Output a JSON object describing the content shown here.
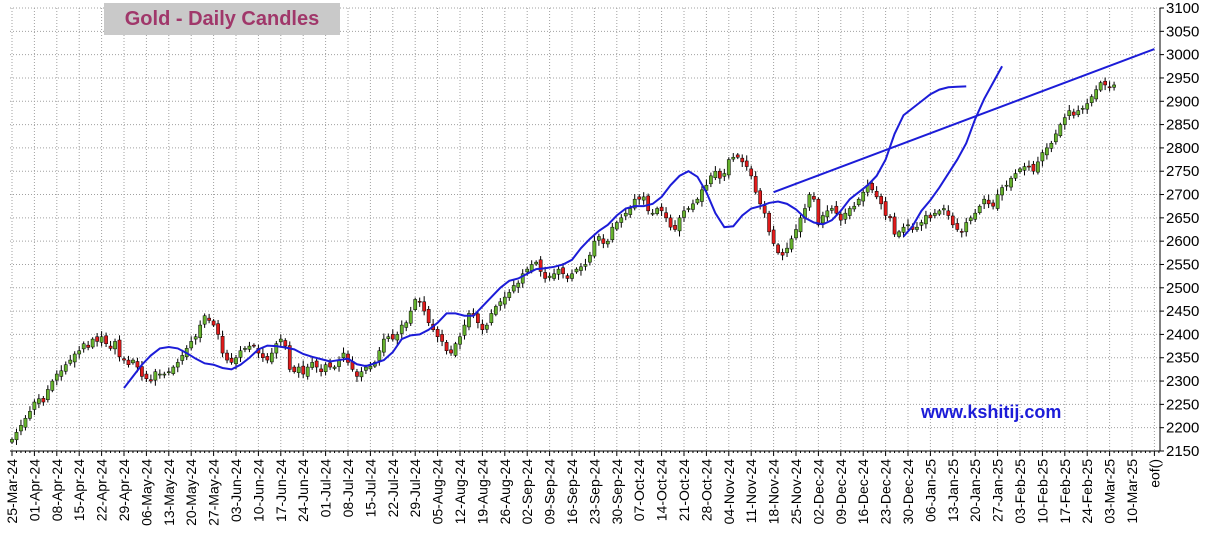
{
  "chart_data": {
    "type": "candlestick",
    "title": "Gold - Daily Candles",
    "watermark": "www.kshitij.com",
    "y_axis": {
      "position": "right",
      "ylim": [
        2150,
        3100
      ],
      "ticks": [
        2150,
        2200,
        2250,
        2300,
        2350,
        2400,
        2450,
        2500,
        2550,
        2600,
        2650,
        2700,
        2750,
        2800,
        2850,
        2900,
        2950,
        3000,
        3050,
        3100
      ]
    },
    "x_axis": {
      "ticks": [
        "25-Mar-24",
        "01-Apr-24",
        "08-Apr-24",
        "15-Apr-24",
        "22-Apr-24",
        "29-Apr-24",
        "06-May-24",
        "13-May-24",
        "20-May-24",
        "27-May-24",
        "03-Jun-24",
        "10-Jun-24",
        "17-Jun-24",
        "24-Jun-24",
        "01-Jul-24",
        "08-Jul-24",
        "15-Jul-24",
        "22-Jul-24",
        "29-Jul-24",
        "05-Aug-24",
        "12-Aug-24",
        "19-Aug-24",
        "26-Aug-24",
        "02-Sep-24",
        "09-Sep-24",
        "16-Sep-24",
        "23-Sep-24",
        "30-Sep-24",
        "07-Oct-24",
        "14-Oct-24",
        "21-Oct-24",
        "28-Oct-24",
        "04-Nov-24",
        "11-Nov-24",
        "18-Nov-24",
        "25-Nov-24",
        "02-Dec-24",
        "09-Dec-24",
        "16-Dec-24",
        "23-Dec-24",
        "30-Dec-24",
        "06-Jan-25",
        "13-Jan-25",
        "20-Jan-25",
        "27-Jan-25",
        "03-Feb-25",
        "10-Feb-25",
        "17-Feb-25",
        "24-Feb-25",
        "03-Mar-25",
        "10-Mar-25",
        "eof()"
      ]
    },
    "colors": {
      "up": "#66b22e",
      "down": "#e01b1b",
      "wick": "#000000",
      "lines": "#1c1cd8",
      "grid": "#a0a0a0"
    },
    "grid": true,
    "closes": [
      2175,
      2190,
      2205,
      2220,
      2235,
      2255,
      2262,
      2255,
      2282,
      2300,
      2315,
      2322,
      2335,
      2345,
      2358,
      2365,
      2380,
      2372,
      2390,
      2385,
      2395,
      2380,
      2370,
      2385,
      2352,
      2345,
      2335,
      2345,
      2330,
      2310,
      2305,
      2300,
      2320,
      2315,
      2315,
      2320,
      2330,
      2340,
      2355,
      2370,
      2385,
      2395,
      2420,
      2440,
      2430,
      2420,
      2400,
      2360,
      2345,
      2340,
      2350,
      2365,
      2370,
      2375,
      2375,
      2360,
      2350,
      2345,
      2360,
      2380,
      2390,
      2375,
      2325,
      2320,
      2330,
      2315,
      2330,
      2340,
      2330,
      2320,
      2335,
      2330,
      2330,
      2345,
      2360,
      2340,
      2325,
      2310,
      2320,
      2330,
      2332,
      2340,
      2365,
      2390,
      2395,
      2390,
      2400,
      2420,
      2425,
      2450,
      2475,
      2470,
      2450,
      2425,
      2410,
      2395,
      2385,
      2365,
      2360,
      2380,
      2395,
      2420,
      2445,
      2440,
      2425,
      2410,
      2420,
      2445,
      2460,
      2470,
      2480,
      2490,
      2505,
      2510,
      2530,
      2540,
      2550,
      2555,
      2535,
      2520,
      2525,
      2530,
      2540,
      2530,
      2520,
      2530,
      2540,
      2545,
      2550,
      2570,
      2600,
      2610,
      2595,
      2600,
      2630,
      2640,
      2650,
      2660,
      2670,
      2690,
      2690,
      2695,
      2665,
      2660,
      2670,
      2665,
      2650,
      2630,
      2625,
      2650,
      2665,
      2670,
      2680,
      2690,
      2710,
      2720,
      2740,
      2750,
      2735,
      2745,
      2775,
      2780,
      2780,
      2770,
      2760,
      2740,
      2705,
      2680,
      2660,
      2620,
      2595,
      2575,
      2570,
      2585,
      2605,
      2625,
      2650,
      2670,
      2700,
      2690,
      2635,
      2655,
      2665,
      2670,
      2660,
      2645,
      2660,
      2670,
      2675,
      2690,
      2705,
      2720,
      2710,
      2695,
      2680,
      2655,
      2650,
      2615,
      2620,
      2630,
      2635,
      2625,
      2630,
      2640,
      2655,
      2650,
      2660,
      2665,
      2670,
      2655,
      2635,
      2625,
      2620,
      2640,
      2650,
      2660,
      2675,
      2690,
      2680,
      2675,
      2700,
      2715,
      2720,
      2735,
      2745,
      2755,
      2760,
      2760,
      2750,
      2770,
      2790,
      2800,
      2810,
      2830,
      2850,
      2865,
      2880,
      2870,
      2880,
      2885,
      2895,
      2910,
      2925,
      2940,
      2935,
      2930,
      2935
    ],
    "ma_series": [
      {
        "start": 25,
        "values": [
          2285,
          2310,
          2335,
          2355,
          2370,
          2373,
          2370,
          2360,
          2348,
          2338,
          2335,
          2328,
          2325,
          2335,
          2350,
          2368,
          2376,
          2375,
          2372,
          2368,
          2358,
          2352,
          2347,
          2342,
          2345,
          2348,
          2336,
          2332,
          2338,
          2345,
          2362,
          2390,
          2398,
          2400,
          2410,
          2425,
          2445,
          2445,
          2440,
          2440,
          2460,
          2480,
          2500,
          2515,
          2520,
          2530,
          2540,
          2542,
          2545,
          2550,
          2560,
          2585,
          2605,
          2622,
          2635,
          2655,
          2670,
          2675,
          2675,
          2680,
          2695,
          2720,
          2740,
          2750,
          2738,
          2705,
          2660,
          2630,
          2632,
          2655,
          2670,
          2675,
          2682,
          2685,
          2680,
          2668,
          2650,
          2640,
          2636,
          2645,
          2665,
          2690,
          2705,
          2720,
          2740,
          2775,
          2830,
          2870,
          2885,
          2900,
          2915,
          2925,
          2930,
          2931,
          2932
        ]
      },
      {
        "start": 199,
        "values": [
          2610,
          2632,
          2665,
          2688,
          2715,
          2745,
          2775,
          2810,
          2862,
          2905,
          2940,
          2975
        ]
      }
    ],
    "trendlines": [
      {
        "name": "upper",
        "from": [
          "18-Nov-24",
          2705
        ],
        "to": [
          "eof()",
          3012
        ]
      }
    ]
  }
}
